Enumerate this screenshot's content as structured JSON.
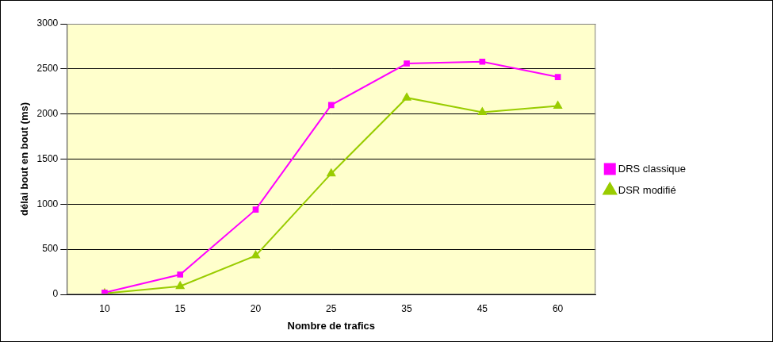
{
  "chart_data": {
    "type": "line",
    "x_label": "Nombre de trafics",
    "y_label": "délai bout en bout (ms)",
    "categories": [
      "10",
      "15",
      "20",
      "25",
      "35",
      "45",
      "60"
    ],
    "series": [
      {
        "name": "DRS classique",
        "color": "#ff00ff",
        "marker": "square",
        "values": [
          20,
          220,
          940,
          2100,
          2560,
          2580,
          2410
        ]
      },
      {
        "name": "DSR modifié",
        "color": "#99cc00",
        "marker": "triangle",
        "values": [
          10,
          90,
          430,
          1340,
          2180,
          2020,
          2090
        ]
      }
    ],
    "ylim": [
      0,
      3000
    ],
    "yticks": [
      0,
      500,
      1000,
      1500,
      2000,
      2500,
      3000
    ],
    "grid": true,
    "legend": "right"
  }
}
